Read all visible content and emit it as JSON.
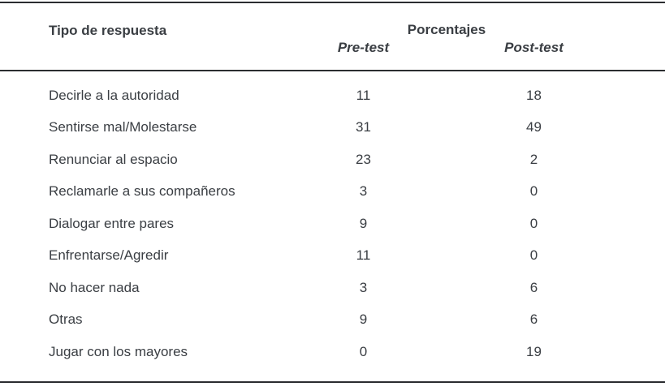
{
  "table": {
    "header": {
      "response_type": "Tipo de respuesta",
      "group": "Porcentajes",
      "pre": "Pre-test",
      "post": "Post-test"
    },
    "rows": [
      {
        "label": "Decirle a la autoridad",
        "pre": "11",
        "post": "18"
      },
      {
        "label": "Sentirse mal/Molestarse",
        "pre": "31",
        "post": "49"
      },
      {
        "label": "Renunciar al espacio",
        "pre": "23",
        "post": "2"
      },
      {
        "label": "Reclamarle a sus compañeros",
        "pre": "3",
        "post": "0"
      },
      {
        "label": "Dialogar entre pares",
        "pre": "9",
        "post": "0"
      },
      {
        "label": "Enfrentarse/Agredir",
        "pre": "11",
        "post": "0"
      },
      {
        "label": "No hacer nada",
        "pre": "3",
        "post": "6"
      },
      {
        "label": "Otras",
        "pre": "9",
        "post": "6"
      },
      {
        "label": "Jugar con los mayores",
        "pre": "0",
        "post": "19"
      }
    ]
  },
  "colors": {
    "text": "#3a3e43",
    "rule": "#2b2d30",
    "background": "#ffffff"
  }
}
